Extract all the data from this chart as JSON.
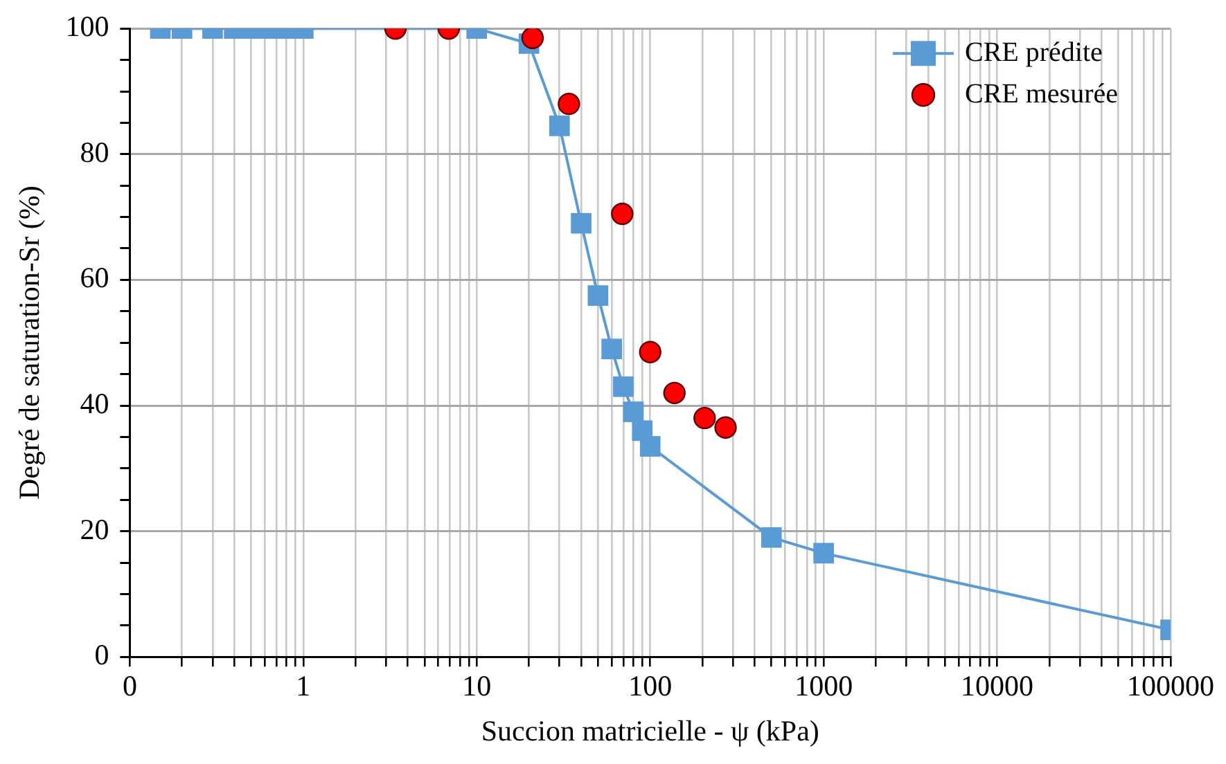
{
  "chart_data": {
    "type": "scatter",
    "xlabel": "Succion matricielle - ψ (kPa)",
    "ylabel": "Degré de saturation-Sr (%)",
    "log": "x",
    "grid": true,
    "legend": "top right",
    "xlim": [
      0.1,
      100000
    ],
    "ylim": [
      0,
      100
    ],
    "xticks": [
      {
        "value": 0.1,
        "label": "0"
      },
      {
        "value": 0.2,
        "label": null
      },
      {
        "value": 0.3,
        "label": null
      },
      {
        "value": 0.4,
        "label": null
      },
      {
        "value": 0.5,
        "label": null
      },
      {
        "value": 0.6,
        "label": null
      },
      {
        "value": 0.7,
        "label": null
      },
      {
        "value": 0.8,
        "label": null
      },
      {
        "value": 0.9,
        "label": null
      },
      1,
      {
        "value": 2,
        "label": null
      },
      {
        "value": 3,
        "label": null
      },
      {
        "value": 4,
        "label": null
      },
      {
        "value": 5,
        "label": null
      },
      {
        "value": 6,
        "label": null
      },
      {
        "value": 7,
        "label": null
      },
      {
        "value": 8,
        "label": null
      },
      {
        "value": 9,
        "label": null
      },
      10,
      {
        "value": 20,
        "label": null
      },
      {
        "value": 30,
        "label": null
      },
      {
        "value": 40,
        "label": null
      },
      {
        "value": 50,
        "label": null
      },
      {
        "value": 60,
        "label": null
      },
      {
        "value": 70,
        "label": null
      },
      {
        "value": 80,
        "label": null
      },
      {
        "value": 90,
        "label": null
      },
      100,
      {
        "value": 200,
        "label": null
      },
      {
        "value": 300,
        "label": null
      },
      {
        "value": 400,
        "label": null
      },
      {
        "value": 500,
        "label": null
      },
      {
        "value": 600,
        "label": null
      },
      {
        "value": 700,
        "label": null
      },
      {
        "value": 800,
        "label": null
      },
      {
        "value": 900,
        "label": null
      },
      1000,
      {
        "value": 2000,
        "label": null
      },
      {
        "value": 3000,
        "label": null
      },
      {
        "value": 4000,
        "label": null
      },
      {
        "value": 5000,
        "label": null
      },
      {
        "value": 6000,
        "label": null
      },
      {
        "value": 7000,
        "label": null
      },
      {
        "value": 8000,
        "label": null
      },
      {
        "value": 9000,
        "label": null
      },
      10000,
      {
        "value": 20000,
        "label": null
      },
      {
        "value": 30000,
        "label": null
      },
      {
        "value": 40000,
        "label": null
      },
      {
        "value": 50000,
        "label": null
      },
      {
        "value": 60000,
        "label": null
      },
      {
        "value": 70000,
        "label": null
      },
      {
        "value": 80000,
        "label": null
      },
      {
        "value": 90000,
        "label": null
      },
      100000
    ],
    "yticks": [
      0,
      {
        "value": 5,
        "label": null
      },
      {
        "value": 10,
        "label": null
      },
      {
        "value": 15,
        "label": null
      },
      20,
      {
        "value": 25,
        "label": null
      },
      {
        "value": 30,
        "label": null
      },
      {
        "value": 35,
        "label": null
      },
      40,
      {
        "value": 45,
        "label": null
      },
      {
        "value": 50,
        "label": null
      },
      {
        "value": 55,
        "label": null
      },
      60,
      {
        "value": 65,
        "label": null
      },
      {
        "value": 70,
        "label": null
      },
      {
        "value": 75,
        "label": null
      },
      80,
      {
        "value": 85,
        "label": null
      },
      {
        "value": 90,
        "label": null
      },
      {
        "value": 95,
        "label": null
      },
      100
    ],
    "series": [
      {
        "name": "CRE prédite",
        "type": "line",
        "marker": "square",
        "color": "#5b9bd5",
        "x": [
          0.15,
          0.2,
          0.3,
          0.4,
          0.5,
          0.6,
          0.7,
          0.8,
          0.9,
          1,
          10,
          20,
          30,
          40,
          50,
          60,
          70,
          80,
          90,
          100,
          500,
          1000,
          100000
        ],
        "values": [
          100,
          100,
          100,
          100,
          100,
          100,
          100,
          100,
          100,
          100,
          100,
          97.6,
          84.5,
          69,
          57.5,
          49,
          43,
          39,
          36,
          33.5,
          19,
          16.5,
          4.3
        ]
      },
      {
        "name": "CRE mesurée",
        "type": "scatter",
        "marker": "circle",
        "color": "#ff0000",
        "x": [
          3.4,
          6.9,
          21,
          34,
          69,
          100,
          138,
          206,
          272
        ],
        "values": [
          100,
          100,
          98.5,
          88,
          70.5,
          48.5,
          42,
          38,
          36.5
        ]
      }
    ]
  }
}
